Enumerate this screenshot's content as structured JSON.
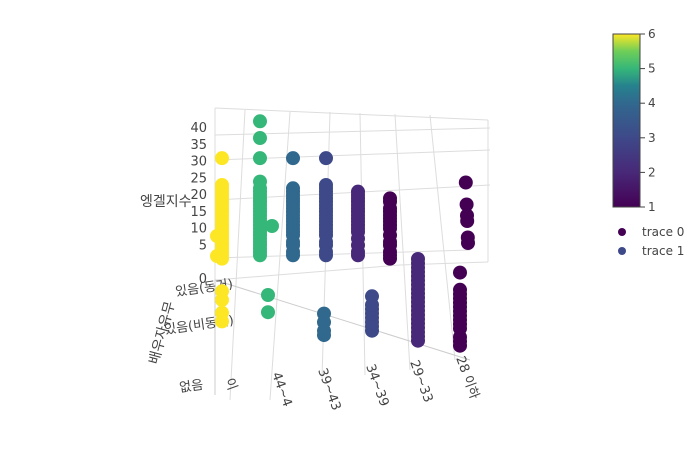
{
  "chart_data": {
    "type": "scatter",
    "projection": "3d",
    "z_axis": {
      "title": "엥겔지수",
      "ticks": [
        "0",
        "5",
        "10",
        "15",
        "20",
        "25",
        "30",
        "35",
        "40"
      ],
      "range": [
        0,
        40
      ]
    },
    "x_axis": {
      "ticks": [
        "28 이하",
        "29~33",
        "34~39",
        "39~43",
        "44~4",
        "이"
      ]
    },
    "y_axis": {
      "title": "배우자유무",
      "ticks": [
        "있음(동거)",
        "있음(비동거)",
        "없음"
      ]
    },
    "colorbar": {
      "ticks": [
        "1",
        "2",
        "3",
        "4",
        "5",
        "6"
      ],
      "range": [
        1,
        6
      ],
      "colorscale": "viridis"
    },
    "legend": {
      "position": "right",
      "items": [
        {
          "label": "trace 0",
          "color": "#440154"
        },
        {
          "label": "trace 1",
          "color": "#3e4989"
        }
      ]
    },
    "series": [
      {
        "color_value": 1,
        "column": 0,
        "plane": "back",
        "z": [
          1,
          2,
          3,
          5,
          6,
          8,
          10,
          11,
          12,
          13,
          14,
          15,
          16,
          18,
          19,
          20,
          21,
          24,
          25,
          27,
          31
        ]
      },
      {
        "color_value": 1,
        "column": 0,
        "plane": "mid",
        "z": [
          1,
          2,
          3,
          5,
          6,
          7,
          8,
          9,
          10,
          11,
          12,
          13,
          14,
          18
        ]
      },
      {
        "color_value": 2,
        "column": 1,
        "plane": "back",
        "z": [
          2,
          3,
          5,
          7,
          9,
          10,
          11,
          12,
          13,
          14,
          15,
          16,
          17,
          18,
          19,
          20,
          21
        ]
      },
      {
        "color_value": 2,
        "column": 1,
        "plane": "mid",
        "z": [
          1,
          2,
          3,
          4,
          5,
          6,
          7,
          8,
          9,
          10,
          11,
          12,
          13,
          14,
          15,
          16,
          17,
          18,
          19,
          20
        ]
      },
      {
        "color_value": 3,
        "column": 2,
        "plane": "back",
        "z": [
          2,
          3,
          5,
          6,
          8,
          9,
          10,
          11,
          12,
          13,
          14,
          15,
          16,
          17,
          18,
          19,
          20,
          21,
          22,
          23,
          31
        ]
      },
      {
        "color_value": 3,
        "column": 2,
        "plane": "mid",
        "z": [
          1,
          2,
          3,
          4,
          5,
          6,
          7,
          9
        ]
      },
      {
        "color_value": 4,
        "column": 3,
        "plane": "back",
        "z": [
          2,
          3,
          5,
          6,
          8,
          9,
          10,
          11,
          12,
          13,
          14,
          15,
          16,
          17,
          18,
          19,
          20,
          21,
          22,
          31
        ]
      },
      {
        "color_value": 4,
        "column": 3,
        "plane": "mid",
        "z": [
          3,
          4,
          6,
          8
        ]
      },
      {
        "color_value": 5,
        "column": 4,
        "plane": "back",
        "z": [
          2,
          3,
          4,
          5,
          6,
          7,
          8,
          9,
          10,
          11,
          12,
          13,
          14,
          15,
          16,
          17,
          18,
          19,
          20,
          21,
          22,
          24,
          31,
          37,
          42
        ]
      },
      {
        "color_value": 5,
        "column": 4,
        "plane": "mid",
        "z": [
          6,
          10
        ]
      },
      {
        "color_value": 5,
        "column": 4,
        "plane": "extra",
        "z": [
          13
        ]
      },
      {
        "color_value": 6,
        "column": 5,
        "plane": "back",
        "z": [
          1,
          2,
          3,
          4,
          5,
          6,
          7,
          8,
          9,
          10,
          11,
          12,
          13,
          14,
          15,
          16,
          17,
          18,
          19,
          20,
          21,
          22,
          23,
          31
        ]
      },
      {
        "color_value": 6,
        "column": 5,
        "plane": "mid",
        "z": [
          2,
          4,
          7,
          9
        ]
      },
      {
        "color_value": 6,
        "column": 5,
        "plane": "front",
        "z": [
          1,
          3
        ]
      }
    ]
  }
}
